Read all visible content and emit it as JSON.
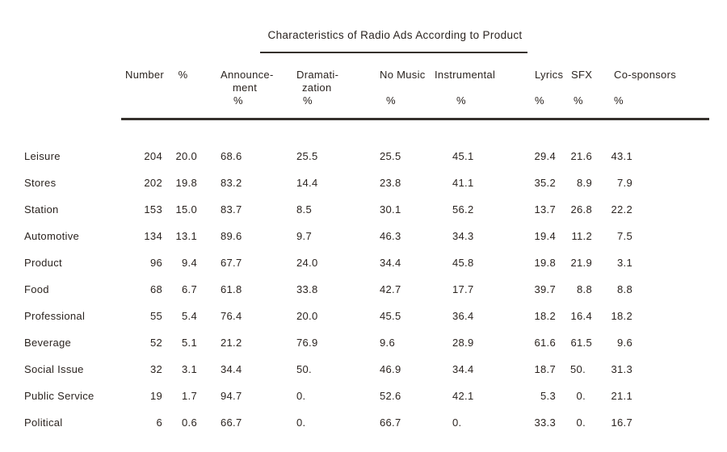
{
  "title": "Characteristics of Radio Ads According to Product",
  "table": {
    "columns": [
      {
        "id": "label",
        "lines": [
          "",
          "",
          ""
        ]
      },
      {
        "id": "number",
        "lines": [
          "Number",
          "",
          ""
        ]
      },
      {
        "id": "pct",
        "lines": [
          "%",
          "",
          ""
        ]
      },
      {
        "id": "announcement",
        "lines": [
          "Announce-",
          "ment",
          "%"
        ]
      },
      {
        "id": "dramatization",
        "lines": [
          "Dramati-",
          "zation",
          "%"
        ]
      },
      {
        "id": "no-music",
        "lines": [
          "No Music",
          "",
          "%"
        ]
      },
      {
        "id": "instrumental",
        "lines": [
          "Instrumental",
          "",
          "%"
        ]
      },
      {
        "id": "lyrics",
        "lines": [
          "Lyrics",
          "",
          "%"
        ]
      },
      {
        "id": "sfx",
        "lines": [
          "SFX",
          "",
          "%"
        ]
      },
      {
        "id": "co-sponsors",
        "lines": [
          "Co-sponsors",
          "",
          "%"
        ]
      }
    ],
    "rows": [
      {
        "label": "Leisure",
        "values": [
          "204",
          "20.0",
          "68.6",
          "25.5",
          "25.5",
          "45.1",
          "29.4",
          "21.6",
          "43.1"
        ]
      },
      {
        "label": "Stores",
        "values": [
          "202",
          "19.8",
          "83.2",
          "14.4",
          "23.8",
          "41.1",
          "35.2",
          "8.9",
          "7.9"
        ]
      },
      {
        "label": "Station",
        "values": [
          "153",
          "15.0",
          "83.7",
          "8.5",
          "30.1",
          "56.2",
          "13.7",
          "26.8",
          "22.2"
        ]
      },
      {
        "label": "Automotive",
        "values": [
          "134",
          "13.1",
          "89.6",
          "9.7",
          "46.3",
          "34.3",
          "19.4",
          "11.2",
          "7.5"
        ]
      },
      {
        "label": "Product",
        "values": [
          "96",
          "9.4",
          "67.7",
          "24.0",
          "34.4",
          "45.8",
          "19.8",
          "21.9",
          "3.1"
        ]
      },
      {
        "label": "Food",
        "values": [
          "68",
          "6.7",
          "61.8",
          "33.8",
          "42.7",
          "17.7",
          "39.7",
          "8.8",
          "8.8"
        ]
      },
      {
        "label": "Professional",
        "values": [
          "55",
          "5.4",
          "76.4",
          "20.0",
          "45.5",
          "36.4",
          "18.2",
          "16.4",
          "18.2"
        ]
      },
      {
        "label": "Beverage",
        "values": [
          "52",
          "5.1",
          "21.2",
          "76.9",
          "9.6",
          "28.9",
          "61.6",
          "61.5",
          "9.6"
        ]
      },
      {
        "label": "Social Issue",
        "values": [
          "32",
          "3.1",
          "34.4",
          "50.",
          "46.9",
          "34.4",
          "18.7",
          "50.",
          "31.3"
        ]
      },
      {
        "label": "Public Service",
        "values": [
          "19",
          "1.7",
          "94.7",
          "0.",
          "52.6",
          "42.1",
          "5.3",
          "0.",
          "21.1"
        ]
      },
      {
        "label": "Political",
        "values": [
          "6",
          "0.6",
          "66.7",
          "0.",
          "66.7",
          "0.",
          "33.3",
          "0.",
          "16.7"
        ]
      }
    ]
  },
  "colors": {
    "text": "#2b2420",
    "rule": "#35302c",
    "background": "#ffffff"
  }
}
